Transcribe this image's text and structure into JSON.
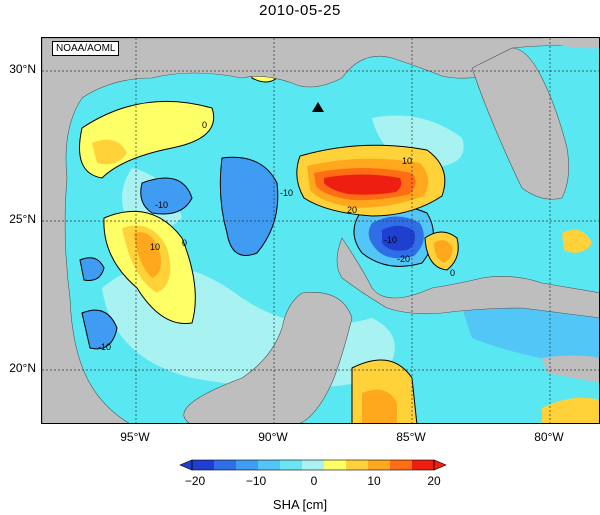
{
  "title": "2010-05-25",
  "credit": "NOAA/AOML",
  "lat_labels": [
    "30°N",
    "25°N",
    "20°N"
  ],
  "lon_labels": [
    "95°W",
    "90°W",
    "85°W",
    "80°W"
  ],
  "contour_labels": [
    "0",
    "10",
    "20",
    "-10",
    "-20"
  ],
  "colorbar": {
    "label": "SHA [cm]",
    "ticks": [
      "−20",
      "−10",
      "0",
      "10",
      "20"
    ],
    "range": [
      -20,
      20
    ],
    "colors": [
      "#1f3fd0",
      "#2f6ee6",
      "#3f9cf2",
      "#52c6f6",
      "#6ae3f2",
      "#a8f2f2",
      "#ffff66",
      "#ffd23a",
      "#ffa81e",
      "#ff6e14",
      "#ee1e10"
    ]
  },
  "colors": {
    "land": "#bebebe",
    "ocean_neutral": "#59e8f2",
    "high_anomaly": "#ee1e10",
    "low_anomaly": "#1f3fd0"
  },
  "marker_icon": "triangle-marker"
}
